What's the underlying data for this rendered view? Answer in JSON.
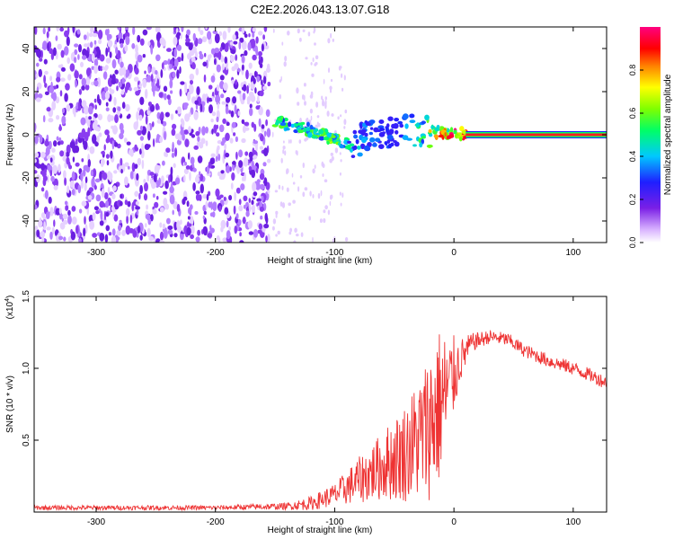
{
  "title": "C2E2.2026.043.13.07.G18",
  "colors": {
    "snr_line": "#ee3333",
    "axis": "#000000",
    "background": "#ffffff"
  },
  "colorbar": {
    "label": "Normalized spectral amplitude",
    "ticks": [
      "0.0",
      "0.2",
      "0.4",
      "0.6",
      "0.8"
    ],
    "tick_values": [
      0.0,
      0.2,
      0.4,
      0.6,
      0.8
    ],
    "range": [
      0,
      1
    ],
    "colormap": "purple-blue-cyan-green-yellow-red-magenta"
  },
  "chart_data": [
    {
      "type": "heatmap",
      "title": "C2E2.2026.043.13.07.G18",
      "xlabel": "Height of straight line (km)",
      "ylabel": "Frequency (Hz)",
      "xlim": [
        -352,
        128
      ],
      "ylim": [
        -50,
        50
      ],
      "xticks": [
        -300,
        -200,
        -100,
        0,
        100
      ],
      "xtick_labels": [
        "-300",
        "-200",
        "-100",
        "0",
        "100"
      ],
      "yticks": [
        -40,
        -20,
        0,
        20,
        40
      ],
      "ytick_labels": [
        "-40",
        "-20",
        "0",
        "20",
        "40"
      ],
      "noise_region_x": [
        -352,
        -155
      ],
      "ridge": {
        "x": [
          -155,
          -140,
          -125,
          -110,
          -100,
          -92,
          -85,
          -75,
          -60,
          -45,
          -30,
          -15,
          0,
          10,
          128
        ],
        "y": [
          7,
          5,
          3,
          0,
          -2,
          -4,
          -5,
          -1,
          1,
          2,
          2,
          1,
          1,
          0,
          0
        ],
        "amplitude": [
          0.7,
          0.5,
          0.55,
          0.6,
          0.65,
          0.55,
          0.45,
          0.35,
          0.3,
          0.3,
          0.5,
          0.8,
          0.95,
          0.9,
          0.9
        ]
      }
    },
    {
      "type": "line",
      "xlabel": "Height of straight line (km)",
      "ylabel": "SNR (10 * v/v)",
      "multiplier_label": "(x10",
      "multiplier_exp": "4",
      "multiplier_close": ")",
      "xlim": [
        -352,
        128
      ],
      "ylim": [
        0,
        1.5
      ],
      "xticks": [
        -300,
        -200,
        -100,
        0,
        100
      ],
      "xtick_labels": [
        "-300",
        "-200",
        "-100",
        "0",
        "100"
      ],
      "yticks": [
        0.5,
        1.0,
        1.5
      ],
      "ytick_labels": [
        "0.5",
        "1.0",
        "1.5"
      ],
      "envelope": {
        "x": [
          -352,
          -300,
          -200,
          -140,
          -120,
          -100,
          -80,
          -60,
          -40,
          -25,
          -15,
          -5,
          5,
          15,
          30,
          45,
          60,
          80,
          100,
          115,
          128
        ],
        "mean": [
          0.03,
          0.03,
          0.03,
          0.04,
          0.06,
          0.12,
          0.22,
          0.32,
          0.42,
          0.55,
          0.7,
          0.85,
          1.05,
          1.18,
          1.22,
          1.2,
          1.12,
          1.05,
          1.0,
          0.95,
          0.9
        ],
        "spread": [
          0.01,
          0.01,
          0.01,
          0.015,
          0.03,
          0.05,
          0.1,
          0.15,
          0.22,
          0.3,
          0.38,
          0.25,
          0.1,
          0.04,
          0.03,
          0.03,
          0.03,
          0.03,
          0.03,
          0.03,
          0.03
        ]
      }
    }
  ]
}
